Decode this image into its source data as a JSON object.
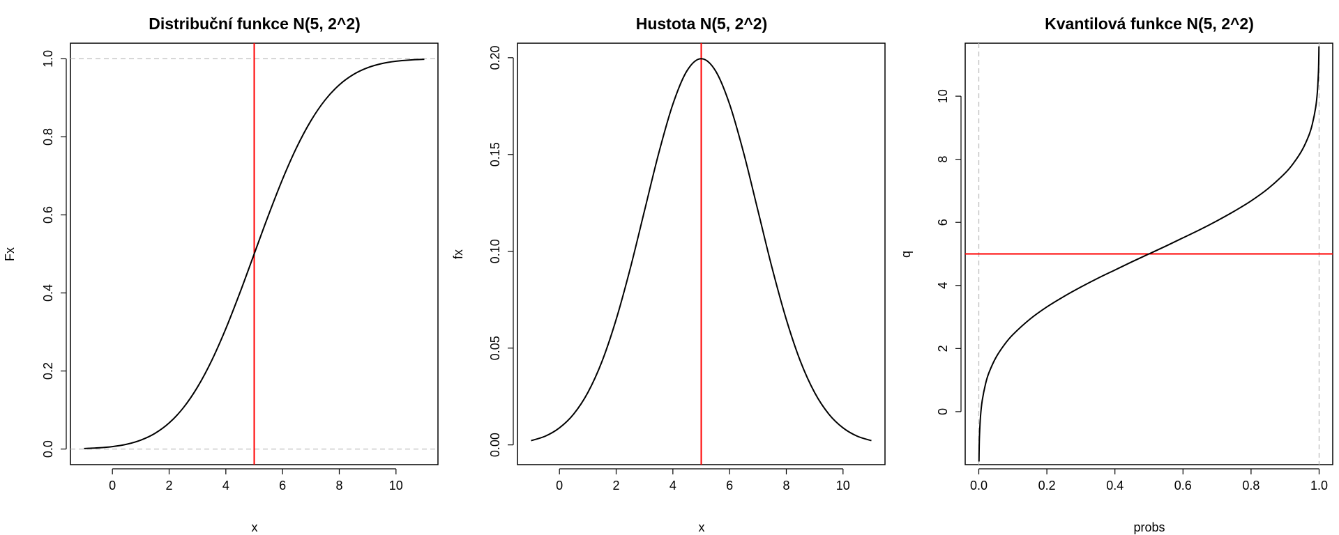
{
  "chart_data": [
    {
      "type": "line",
      "title": "Distribuční funkce N(5, 2^2)",
      "xlabel": "x",
      "ylabel": "Fx",
      "xlim": [
        -1.48,
        11.48
      ],
      "ylim": [
        -0.04,
        1.04
      ],
      "xticks": [
        0,
        2,
        4,
        6,
        8,
        10
      ],
      "yticks": [
        0.0,
        0.2,
        0.4,
        0.6,
        0.8,
        1.0
      ],
      "xtick_labels": [
        "0",
        "2",
        "4",
        "6",
        "8",
        "10"
      ],
      "ytick_labels": [
        "0.0",
        "0.2",
        "0.4",
        "0.6",
        "0.8",
        "1.0"
      ],
      "grid": false,
      "series": [
        {
          "color": "#000000",
          "x": [
            -1,
            -0.5,
            0,
            0.5,
            1,
            1.5,
            2,
            2.5,
            3,
            3.5,
            4,
            4.5,
            5,
            5.5,
            6,
            6.5,
            7,
            7.5,
            8,
            8.5,
            9,
            9.5,
            10,
            10.5,
            11
          ],
          "y": [
            0.0013,
            0.003,
            0.0062,
            0.0122,
            0.0228,
            0.0401,
            0.0668,
            0.1056,
            0.1587,
            0.2266,
            0.3085,
            0.4013,
            0.5,
            0.5987,
            0.6915,
            0.7734,
            0.8413,
            0.8944,
            0.9332,
            0.9599,
            0.9772,
            0.9878,
            0.9938,
            0.997,
            0.9987
          ]
        }
      ],
      "reference_lines": [
        {
          "orientation": "horizontal",
          "value": 0,
          "color": "#bebebe",
          "style": "dashed"
        },
        {
          "orientation": "horizontal",
          "value": 1,
          "color": "#bebebe",
          "style": "dashed"
        },
        {
          "orientation": "vertical",
          "value": 5,
          "color": "#ff0000",
          "style": "solid"
        }
      ]
    },
    {
      "type": "line",
      "title": "Hustota N(5, 2^2)",
      "xlabel": "x",
      "ylabel": "fx",
      "xlim": [
        -1.48,
        11.48
      ],
      "ylim": [
        -0.0102,
        0.2075
      ],
      "xticks": [
        0,
        2,
        4,
        6,
        8,
        10
      ],
      "yticks": [
        0.0,
        0.05,
        0.1,
        0.15,
        0.2
      ],
      "xtick_labels": [
        "0",
        "2",
        "4",
        "6",
        "8",
        "10"
      ],
      "ytick_labels": [
        "0.00",
        "0.05",
        "0.10",
        "0.15",
        "0.20"
      ],
      "grid": false,
      "series": [
        {
          "color": "#000000",
          "x": [
            -1,
            -0.5,
            0,
            0.5,
            1,
            1.5,
            2,
            2.5,
            3,
            3.5,
            4,
            4.5,
            5,
            5.5,
            6,
            6.5,
            7,
            7.5,
            8,
            8.5,
            9,
            9.5,
            10,
            10.5,
            11
          ],
          "y": [
            0.0022,
            0.0045,
            0.0088,
            0.0159,
            0.027,
            0.0431,
            0.0648,
            0.0913,
            0.121,
            0.1506,
            0.176,
            0.1933,
            0.1995,
            0.1933,
            0.176,
            0.1506,
            0.121,
            0.0913,
            0.0648,
            0.0431,
            0.027,
            0.0159,
            0.0088,
            0.0045,
            0.0022
          ]
        }
      ],
      "reference_lines": [
        {
          "orientation": "vertical",
          "value": 5,
          "color": "#ff0000",
          "style": "solid"
        }
      ]
    },
    {
      "type": "line",
      "title": "Kvantilová funkce N(5, 2^2)",
      "xlabel": "probs",
      "ylabel": "q",
      "xlim": [
        -0.04,
        1.04
      ],
      "ylim": [
        -1.68,
        11.68
      ],
      "xticks": [
        0.0,
        0.2,
        0.4,
        0.6,
        0.8,
        1.0
      ],
      "yticks": [
        0,
        2,
        4,
        6,
        8,
        10
      ],
      "xtick_labels": [
        "0.0",
        "0.2",
        "0.4",
        "0.6",
        "0.8",
        "1.0"
      ],
      "ytick_labels": [
        "0",
        "2",
        "4",
        "6",
        "8",
        "10"
      ],
      "grid": false,
      "series": [
        {
          "color": "#000000",
          "x": [
            0.0005,
            0.001,
            0.002,
            0.005,
            0.01,
            0.02,
            0.03,
            0.05,
            0.075,
            0.1,
            0.15,
            0.2,
            0.25,
            0.3,
            0.35,
            0.4,
            0.45,
            0.5,
            0.55,
            0.6,
            0.65,
            0.7,
            0.75,
            0.8,
            0.85,
            0.9,
            0.925,
            0.95,
            0.97,
            0.98,
            0.99,
            0.995,
            0.998,
            0.999,
            0.9995
          ],
          "y": [
            -1.58,
            -1.18,
            -0.76,
            -0.15,
            0.35,
            0.89,
            1.24,
            1.71,
            2.12,
            2.44,
            2.93,
            3.32,
            3.65,
            3.95,
            4.23,
            4.49,
            4.75,
            5.0,
            5.25,
            5.51,
            5.77,
            6.05,
            6.35,
            6.68,
            7.07,
            7.56,
            7.88,
            8.29,
            8.76,
            9.11,
            9.65,
            10.15,
            10.76,
            11.18,
            11.58
          ]
        }
      ],
      "reference_lines": [
        {
          "orientation": "vertical",
          "value": 0,
          "color": "#bebebe",
          "style": "dashed"
        },
        {
          "orientation": "vertical",
          "value": 1,
          "color": "#bebebe",
          "style": "dashed"
        },
        {
          "orientation": "horizontal",
          "value": 5,
          "color": "#ff0000",
          "style": "solid"
        }
      ]
    }
  ]
}
